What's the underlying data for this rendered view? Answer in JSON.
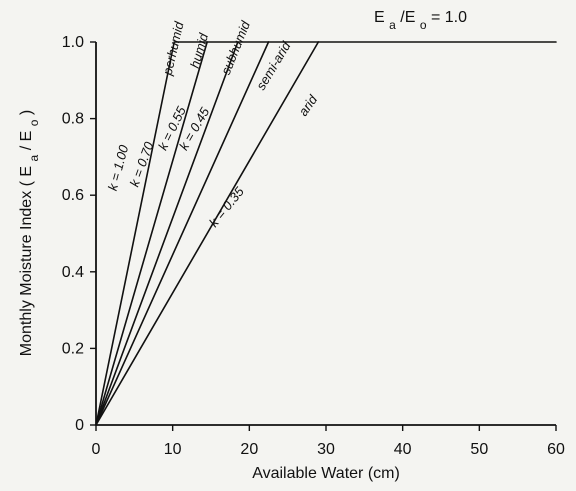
{
  "chart_data": {
    "type": "line",
    "title": "",
    "xlabel": "Available Water (cm)",
    "ylabel": "Monthly Moisture Index",
    "ylabel_symbol": {
      "main": "E",
      "sub1": "a",
      "slash": "/",
      "sub2": "o"
    },
    "xlim": [
      0,
      60
    ],
    "ylim": [
      0,
      1.0
    ],
    "xticks": [
      0,
      10,
      20,
      30,
      40,
      50,
      60
    ],
    "xtick_labels": [
      "0",
      "10",
      "20",
      "30",
      "40",
      "50",
      "60"
    ],
    "yticks": [
      0,
      0.2,
      0.4,
      0.6,
      0.8,
      1.0
    ],
    "ytick_labels": [
      "0",
      "0.2",
      "0.4",
      "0.6",
      "0.8",
      "1.0"
    ],
    "grid": false,
    "legend": "none",
    "annotations": [
      {
        "text": "E",
        "subscript1": "a",
        "separator": "/E",
        "subscript2": "o",
        "suffix": " = 1.0"
      }
    ],
    "series": [
      {
        "label": "k = 1.00",
        "class_label": "perhumid",
        "x": [
          0,
          10.2,
          60
        ],
        "y": [
          0,
          1.0,
          1.0
        ]
      },
      {
        "label": "k = 0.70",
        "class_label": "humid",
        "x": [
          0,
          14.5
        ],
        "y": [
          0,
          1.0
        ]
      },
      {
        "label": "k = 0.55",
        "class_label": "subhumid",
        "x": [
          0,
          18.5
        ],
        "y": [
          0,
          1.0
        ]
      },
      {
        "label": "k = 0.45",
        "class_label": "semi-arid",
        "x": [
          0,
          22.5
        ],
        "y": [
          0,
          1.0
        ]
      },
      {
        "label": "k = 0.35",
        "class_label": "arid",
        "x": [
          0,
          29
        ],
        "y": [
          0,
          1.0
        ]
      }
    ],
    "colors": {
      "line": "#111111",
      "background": "#f4f4f1"
    }
  }
}
